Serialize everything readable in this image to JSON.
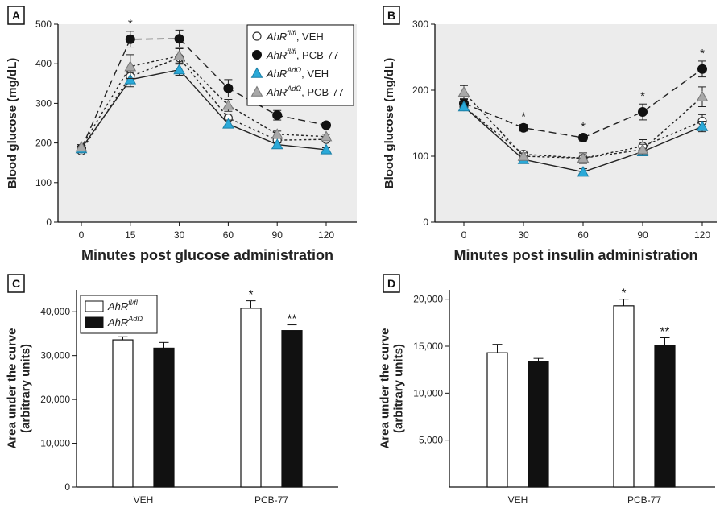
{
  "chart_data": [
    {
      "panel": "A",
      "type": "line",
      "xlabel": "Minutes post glucose administration",
      "ylabel": "Blood glucose (mg/dL)",
      "x": [
        0,
        15,
        30,
        60,
        90,
        120
      ],
      "ylim": [
        0,
        500
      ],
      "yticks": [
        0,
        100,
        200,
        300,
        400,
        500
      ],
      "legend": "top-right",
      "series": [
        {
          "name": "AhRfl/fl, VEH",
          "base": "AhR",
          "sup": "fl/fl",
          "suffix": ", VEH",
          "marker": "circle-open",
          "dash": "3,3",
          "values": [
            180,
            368,
            415,
            263,
            207,
            209
          ],
          "errors": [
            5,
            14,
            15,
            10,
            7,
            5
          ]
        },
        {
          "name": "AhRfl/fl, PCB-77",
          "base": "AhR",
          "sup": "fl/fl",
          "suffix": ", PCB-77",
          "marker": "circle-filled",
          "dash": "9,5",
          "values": [
            186,
            462,
            463,
            338,
            270,
            245
          ],
          "errors": [
            6,
            20,
            22,
            22,
            12,
            6
          ]
        },
        {
          "name": "AhRAdΩ, VEH",
          "base": "AhR",
          "sup": "AdΩ",
          "suffix": ", VEH",
          "marker": "triangle-blue",
          "dash": "",
          "values": [
            186,
            360,
            385,
            248,
            196,
            183
          ],
          "errors": [
            5,
            18,
            14,
            10,
            5,
            5
          ]
        },
        {
          "name": "AhRAdΩ, PCB-77",
          "base": "AhR",
          "sup": "AdΩ",
          "suffix": ", PCB-77",
          "marker": "triangle-gray",
          "dash": "3,3",
          "values": [
            190,
            393,
            420,
            295,
            222,
            216
          ],
          "errors": [
            6,
            30,
            18,
            15,
            8,
            6
          ]
        }
      ],
      "annotations": [
        {
          "x": 15,
          "text": "*"
        },
        {
          "x": 90,
          "text": "*"
        }
      ]
    },
    {
      "panel": "B",
      "type": "line",
      "xlabel": "Minutes post insulin administration",
      "ylabel": "Blood glucose (mg/dL)",
      "x": [
        0,
        30,
        60,
        90,
        120
      ],
      "ylim": [
        0,
        300
      ],
      "yticks": [
        0,
        100,
        200,
        300
      ],
      "series": [
        {
          "name": "AhRfl/fl, VEH",
          "marker": "circle-open",
          "dash": "3,3",
          "values": [
            175,
            103,
            97,
            115,
            153
          ],
          "errors": [
            6,
            5,
            5,
            10,
            10
          ]
        },
        {
          "name": "AhRfl/fl, PCB-77",
          "marker": "circle-filled",
          "dash": "9,5",
          "values": [
            180,
            143,
            128,
            167,
            232
          ],
          "errors": [
            6,
            5,
            5,
            12,
            12
          ]
        },
        {
          "name": "AhRAdΩ, VEH",
          "marker": "triangle-blue",
          "dash": "",
          "values": [
            175,
            95,
            76,
            107,
            145
          ],
          "errors": [
            6,
            5,
            5,
            5,
            8
          ]
        },
        {
          "name": "AhRAdΩ, PCB-77",
          "marker": "triangle-gray",
          "dash": "3,3",
          "values": [
            197,
            100,
            97,
            110,
            190
          ],
          "errors": [
            10,
            5,
            8,
            8,
            15
          ]
        }
      ],
      "annotations": [
        {
          "x": 30,
          "text": "*"
        },
        {
          "x": 60,
          "text": "*"
        },
        {
          "x": 90,
          "text": "*"
        },
        {
          "x": 120,
          "text": "*"
        }
      ]
    },
    {
      "panel": "C",
      "type": "bar",
      "ylabel": "Area under the curve (arbitrary units)",
      "ylabel_lines": [
        "Area under the curve",
        "(arbitrary units)"
      ],
      "categories": [
        "VEH",
        "PCB-77"
      ],
      "ylim": [
        0,
        45000
      ],
      "yticks": [
        0,
        10000,
        20000,
        30000,
        40000
      ],
      "ytick_labels": [
        "0",
        "10,000",
        "20,000",
        "30,000",
        "40,000"
      ],
      "legend": "top-left",
      "series": [
        {
          "name": "AhRfl/fl",
          "base": "AhR",
          "sup": "fl/fl",
          "fill": "#ffffff",
          "values": [
            33600,
            40800
          ],
          "errors": [
            700,
            1700
          ],
          "annotations": [
            "",
            "*"
          ]
        },
        {
          "name": "AhRAdΩ",
          "base": "AhR",
          "sup": "AdΩ",
          "fill": "#111111",
          "values": [
            31700,
            35700
          ],
          "errors": [
            1300,
            1300
          ],
          "annotations": [
            "",
            "**"
          ]
        }
      ]
    },
    {
      "panel": "D",
      "type": "bar",
      "ylabel": "Area under the curve (arbitrary units)",
      "ylabel_lines": [
        "Area under the curve",
        "(arbitrary units)"
      ],
      "categories": [
        "VEH",
        "PCB-77"
      ],
      "ylim": [
        0,
        21000
      ],
      "yticks": [
        5000,
        10000,
        15000,
        20000
      ],
      "ytick_labels": [
        "5,000",
        "10,000",
        "15,000",
        "20,000"
      ],
      "series": [
        {
          "name": "AhRfl/fl",
          "fill": "#ffffff",
          "values": [
            14300,
            19300
          ],
          "errors": [
            900,
            700
          ],
          "annotations": [
            "",
            "*"
          ]
        },
        {
          "name": "AhRAdΩ",
          "fill": "#111111",
          "values": [
            13400,
            15100
          ],
          "errors": [
            300,
            800
          ],
          "annotations": [
            "",
            "**"
          ]
        }
      ]
    }
  ]
}
